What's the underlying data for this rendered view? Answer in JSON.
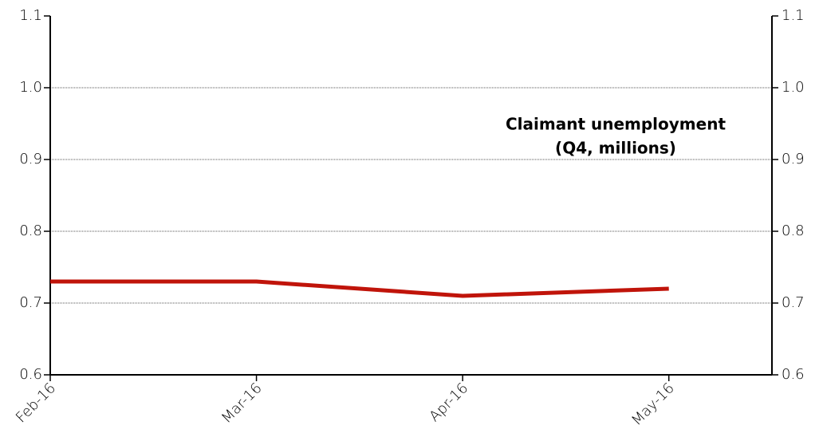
{
  "chart_data": {
    "type": "line",
    "annotation": [
      "Claimant unemployment",
      "(Q4, millions)"
    ],
    "categories": [
      "Feb-16",
      "Mar-16",
      "Apr-16",
      "May-16"
    ],
    "values": [
      0.73,
      0.73,
      0.71,
      0.72
    ],
    "color": "#c0140a",
    "ylim": [
      0.6,
      1.1
    ],
    "yticks": [
      0.6,
      0.7,
      0.8,
      0.9,
      {
        "value": 1,
        "label": "1.0"
      },
      1.1
    ],
    "y2lim": [
      0.6,
      1.1
    ],
    "y2ticks": [
      0.6,
      0.7,
      0.8,
      0.9,
      {
        "value": 1,
        "label": "1.0"
      },
      1.1
    ],
    "grid": true
  }
}
